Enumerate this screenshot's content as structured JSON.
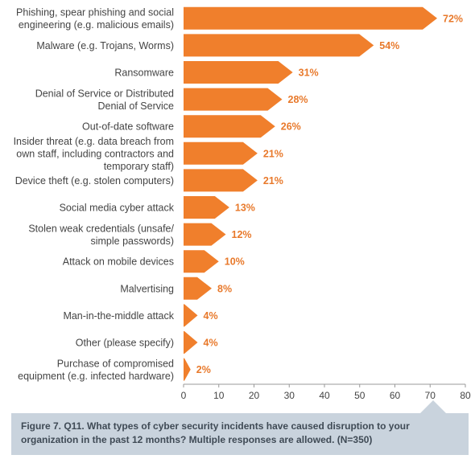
{
  "chart_data": {
    "type": "bar",
    "orientation": "horizontal",
    "categories": [
      "Phishing, spear phishing and social|engineering (e.g. malicious emails)",
      "Malware (e.g. Trojans, Worms)",
      "Ransomware",
      "Denial of Service or Distributed|Denial of Service",
      "Out-of-date software",
      "Insider threat (e.g. data breach from|own staff, including contractors and|temporary staff)",
      "Device theft (e.g. stolen computers)",
      "Social media cyber attack",
      "Stolen weak credentials (unsafe/|simple passwords)",
      "Attack on mobile devices",
      "Malvertising",
      "Man-in-the-middle attack",
      "Other (please specify)",
      "Purchase of compromised|equipment (e.g. infected hardware)"
    ],
    "values": [
      72,
      54,
      31,
      28,
      26,
      21,
      21,
      13,
      12,
      10,
      8,
      4,
      4,
      2
    ],
    "value_labels": [
      "72%",
      "54%",
      "31%",
      "28%",
      "26%",
      "21%",
      "21%",
      "13%",
      "12%",
      "10%",
      "8%",
      "4%",
      "4%",
      "2%"
    ],
    "xlim": [
      0,
      80
    ],
    "xticks": [
      "0",
      "10",
      "20",
      "30",
      "40",
      "50",
      "60",
      "70",
      "80"
    ],
    "bar_color": "#f07f2c",
    "label_color": "#e8792b",
    "grid": false
  },
  "caption": {
    "text": "Figure 7. Q11. What types of cyber security incidents have caused disruption to your organization in the past 12 months? Multiple responses are allowed. (N=350)"
  }
}
